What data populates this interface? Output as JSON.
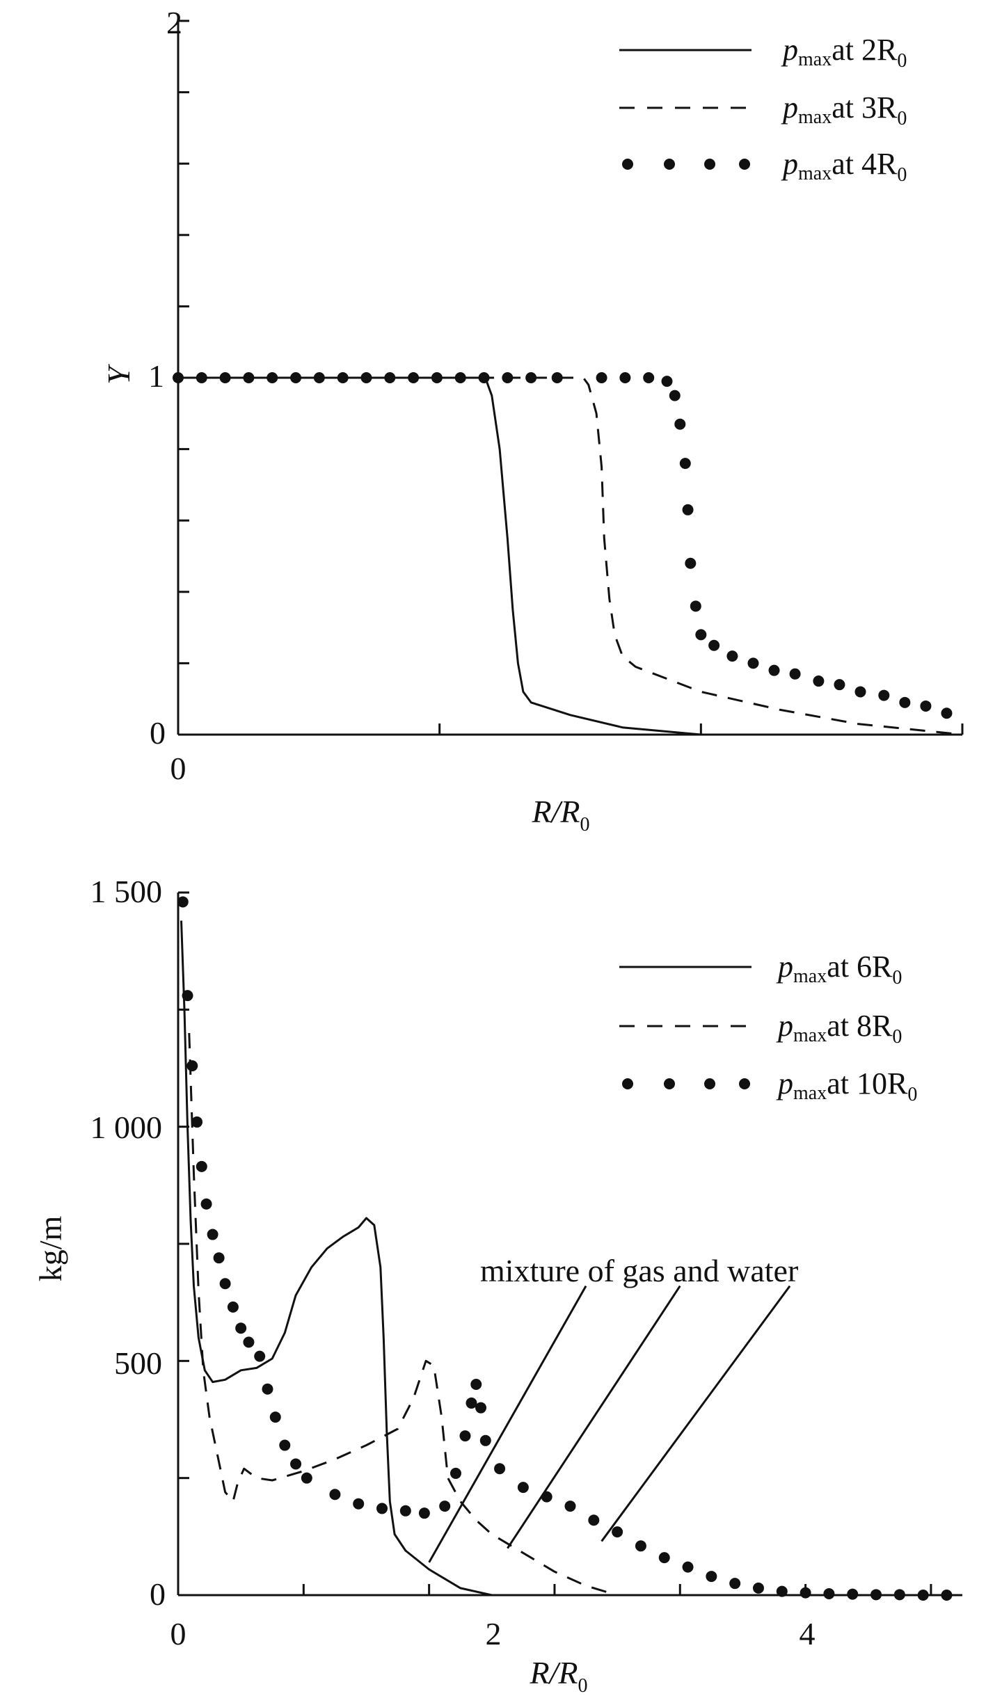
{
  "chart_data": [
    {
      "type": "line",
      "title": "",
      "xlabel": "R/R",
      "xlabel_sub": "0",
      "ylabel": "Y",
      "xlim": [
        0,
        3
      ],
      "ylim": [
        0,
        2
      ],
      "x_tick_labels": [
        "0"
      ],
      "y_tick_labels": [
        "0",
        "1",
        "2"
      ],
      "x_ticks": [
        0,
        1,
        2,
        3
      ],
      "y_ticks": [
        0,
        0.2,
        0.4,
        0.6,
        0.8,
        1.0,
        1.2,
        1.4,
        1.6,
        1.8,
        2.0
      ],
      "legend": [
        {
          "prefix": "p",
          "sub": "max",
          "text": "at 2R",
          "sub2": "0",
          "style": "solid"
        },
        {
          "prefix": "p",
          "sub": "max",
          "text": "at 3R",
          "sub2": "0",
          "style": "dashed"
        },
        {
          "prefix": "p",
          "sub": "max",
          "text": "at 4R",
          "sub2": "0",
          "style": "dotted"
        }
      ],
      "series": [
        {
          "name": "pmax at 2R0",
          "style": "solid",
          "points": [
            [
              0,
              1
            ],
            [
              1.15,
              1
            ],
            [
              1.18,
              0.99
            ],
            [
              1.2,
              0.95
            ],
            [
              1.23,
              0.8
            ],
            [
              1.26,
              0.55
            ],
            [
              1.28,
              0.35
            ],
            [
              1.3,
              0.2
            ],
            [
              1.32,
              0.12
            ],
            [
              1.35,
              0.09
            ],
            [
              1.5,
              0.055
            ],
            [
              1.7,
              0.02
            ],
            [
              2.0,
              0
            ]
          ]
        },
        {
          "name": "pmax at 3R0",
          "style": "dashed",
          "points": [
            [
              1.15,
              1
            ],
            [
              1.55,
              1
            ],
            [
              1.57,
              0.98
            ],
            [
              1.6,
              0.9
            ],
            [
              1.62,
              0.75
            ],
            [
              1.63,
              0.55
            ],
            [
              1.65,
              0.38
            ],
            [
              1.67,
              0.28
            ],
            [
              1.7,
              0.22
            ],
            [
              1.75,
              0.19
            ],
            [
              2.0,
              0.12
            ],
            [
              2.3,
              0.07
            ],
            [
              2.6,
              0.03
            ],
            [
              3.0,
              0
            ]
          ]
        },
        {
          "name": "pmax at 4R0",
          "style": "dotted",
          "points": [
            [
              0,
              1
            ],
            [
              0.09,
              1
            ],
            [
              0.18,
              1
            ],
            [
              0.27,
              1
            ],
            [
              0.36,
              1
            ],
            [
              0.45,
              1
            ],
            [
              0.54,
              1
            ],
            [
              0.63,
              1
            ],
            [
              0.72,
              1
            ],
            [
              0.81,
              1
            ],
            [
              0.9,
              1
            ],
            [
              0.99,
              1
            ],
            [
              1.08,
              1
            ],
            [
              1.17,
              1
            ],
            [
              1.26,
              1
            ],
            [
              1.35,
              1
            ],
            [
              1.45,
              1
            ],
            [
              1.62,
              1
            ],
            [
              1.71,
              1
            ],
            [
              1.8,
              1
            ],
            [
              1.87,
              0.99
            ],
            [
              1.9,
              0.95
            ],
            [
              1.92,
              0.87
            ],
            [
              1.94,
              0.76
            ],
            [
              1.95,
              0.63
            ],
            [
              1.96,
              0.48
            ],
            [
              1.98,
              0.36
            ],
            [
              2.0,
              0.28
            ],
            [
              2.05,
              0.25
            ],
            [
              2.12,
              0.22
            ],
            [
              2.2,
              0.2
            ],
            [
              2.28,
              0.18
            ],
            [
              2.36,
              0.17
            ],
            [
              2.45,
              0.15
            ],
            [
              2.53,
              0.14
            ],
            [
              2.61,
              0.12
            ],
            [
              2.7,
              0.11
            ],
            [
              2.78,
              0.09
            ],
            [
              2.86,
              0.08
            ],
            [
              2.94,
              0.06
            ]
          ]
        }
      ]
    },
    {
      "type": "line",
      "title": "",
      "xlabel": "R/R",
      "xlabel_sub": "0",
      "ylabel": "kg/m",
      "xlim": [
        0,
        5
      ],
      "ylim": [
        0,
        1500
      ],
      "x_tick_labels": [
        "0",
        "2",
        "4"
      ],
      "x_tick_label_values": [
        0,
        2,
        4
      ],
      "y_tick_labels": [
        "0",
        "500",
        "1 000",
        "1 500"
      ],
      "y_tick_label_values": [
        0,
        500,
        1000,
        1500
      ],
      "x_ticks": [
        0,
        0.8,
        1.6,
        2.4,
        3.2,
        4.0,
        4.8
      ],
      "y_ticks": [
        0,
        250,
        500,
        750,
        1000,
        1250,
        1500
      ],
      "legend": [
        {
          "prefix": "p",
          "sub": "max",
          "text": "at 6R",
          "sub2": "0",
          "style": "solid"
        },
        {
          "prefix": "p",
          "sub": "max",
          "text": "at 8R",
          "sub2": "0",
          "style": "dashed"
        },
        {
          "prefix": "p",
          "sub": "max",
          "text": "at 10R",
          "sub2": "0",
          "style": "dotted"
        }
      ],
      "annotation": "mixture of gas and water",
      "annotation_lines": [
        [
          [
            1.6,
            70
          ],
          [
            2.6,
            660
          ]
        ],
        [
          [
            2.1,
            100
          ],
          [
            3.2,
            660
          ]
        ],
        [
          [
            2.7,
            115
          ],
          [
            3.9,
            660
          ]
        ]
      ],
      "series": [
        {
          "name": "pmax at 6R0",
          "style": "solid",
          "points": [
            [
              0.02,
              1440
            ],
            [
              0.04,
              1250
            ],
            [
              0.06,
              1000
            ],
            [
              0.08,
              800
            ],
            [
              0.1,
              660
            ],
            [
              0.13,
              550
            ],
            [
              0.17,
              480
            ],
            [
              0.22,
              455
            ],
            [
              0.3,
              460
            ],
            [
              0.4,
              480
            ],
            [
              0.5,
              485
            ],
            [
              0.6,
              505
            ],
            [
              0.68,
              560
            ],
            [
              0.75,
              640
            ],
            [
              0.85,
              700
            ],
            [
              0.95,
              740
            ],
            [
              1.05,
              765
            ],
            [
              1.15,
              785
            ],
            [
              1.2,
              805
            ],
            [
              1.25,
              790
            ],
            [
              1.29,
              700
            ],
            [
              1.31,
              550
            ],
            [
              1.33,
              350
            ],
            [
              1.35,
              200
            ],
            [
              1.38,
              130
            ],
            [
              1.45,
              95
            ],
            [
              1.6,
              55
            ],
            [
              1.8,
              15
            ],
            [
              2.0,
              0
            ]
          ]
        },
        {
          "name": "pmax at 8R0",
          "style": "dashed",
          "points": [
            [
              0.07,
              1200
            ],
            [
              0.1,
              900
            ],
            [
              0.13,
              650
            ],
            [
              0.16,
              480
            ],
            [
              0.2,
              380
            ],
            [
              0.25,
              300
            ],
            [
              0.3,
              220
            ],
            [
              0.35,
              200
            ],
            [
              0.38,
              240
            ],
            [
              0.42,
              270
            ],
            [
              0.5,
              250
            ],
            [
              0.6,
              245
            ],
            [
              0.8,
              265
            ],
            [
              1.0,
              290
            ],
            [
              1.2,
              320
            ],
            [
              1.4,
              355
            ],
            [
              1.5,
              420
            ],
            [
              1.58,
              500
            ],
            [
              1.63,
              490
            ],
            [
              1.68,
              380
            ],
            [
              1.72,
              250
            ],
            [
              1.8,
              200
            ],
            [
              1.9,
              160
            ],
            [
              2.0,
              130
            ],
            [
              2.2,
              90
            ],
            [
              2.4,
              50
            ],
            [
              2.6,
              20
            ],
            [
              2.8,
              0
            ]
          ]
        },
        {
          "name": "pmax at 10R0",
          "style": "dotted",
          "points": [
            [
              0.03,
              1480
            ],
            [
              0.06,
              1280
            ],
            [
              0.09,
              1130
            ],
            [
              0.12,
              1010
            ],
            [
              0.15,
              915
            ],
            [
              0.18,
              835
            ],
            [
              0.22,
              770
            ],
            [
              0.26,
              720
            ],
            [
              0.3,
              665
            ],
            [
              0.35,
              615
            ],
            [
              0.4,
              570
            ],
            [
              0.45,
              540
            ],
            [
              0.52,
              510
            ],
            [
              0.57,
              440
            ],
            [
              0.62,
              380
            ],
            [
              0.68,
              320
            ],
            [
              0.75,
              280
            ],
            [
              0.82,
              250
            ],
            [
              1.0,
              215
            ],
            [
              1.15,
              195
            ],
            [
              1.3,
              185
            ],
            [
              1.45,
              180
            ],
            [
              1.57,
              175
            ],
            [
              1.7,
              190
            ],
            [
              1.77,
              260
            ],
            [
              1.83,
              340
            ],
            [
              1.87,
              410
            ],
            [
              1.9,
              450
            ],
            [
              1.93,
              400
            ],
            [
              1.96,
              330
            ],
            [
              2.05,
              270
            ],
            [
              2.2,
              230
            ],
            [
              2.35,
              210
            ],
            [
              2.5,
              190
            ],
            [
              2.65,
              160
            ],
            [
              2.8,
              135
            ],
            [
              2.95,
              105
            ],
            [
              3.1,
              80
            ],
            [
              3.25,
              60
            ],
            [
              3.4,
              40
            ],
            [
              3.55,
              25
            ],
            [
              3.7,
              15
            ],
            [
              3.85,
              8
            ],
            [
              4.0,
              5
            ],
            [
              4.15,
              3
            ],
            [
              4.3,
              2
            ],
            [
              4.45,
              1
            ],
            [
              4.6,
              1
            ],
            [
              4.75,
              0
            ],
            [
              4.9,
              0
            ]
          ]
        }
      ]
    }
  ]
}
